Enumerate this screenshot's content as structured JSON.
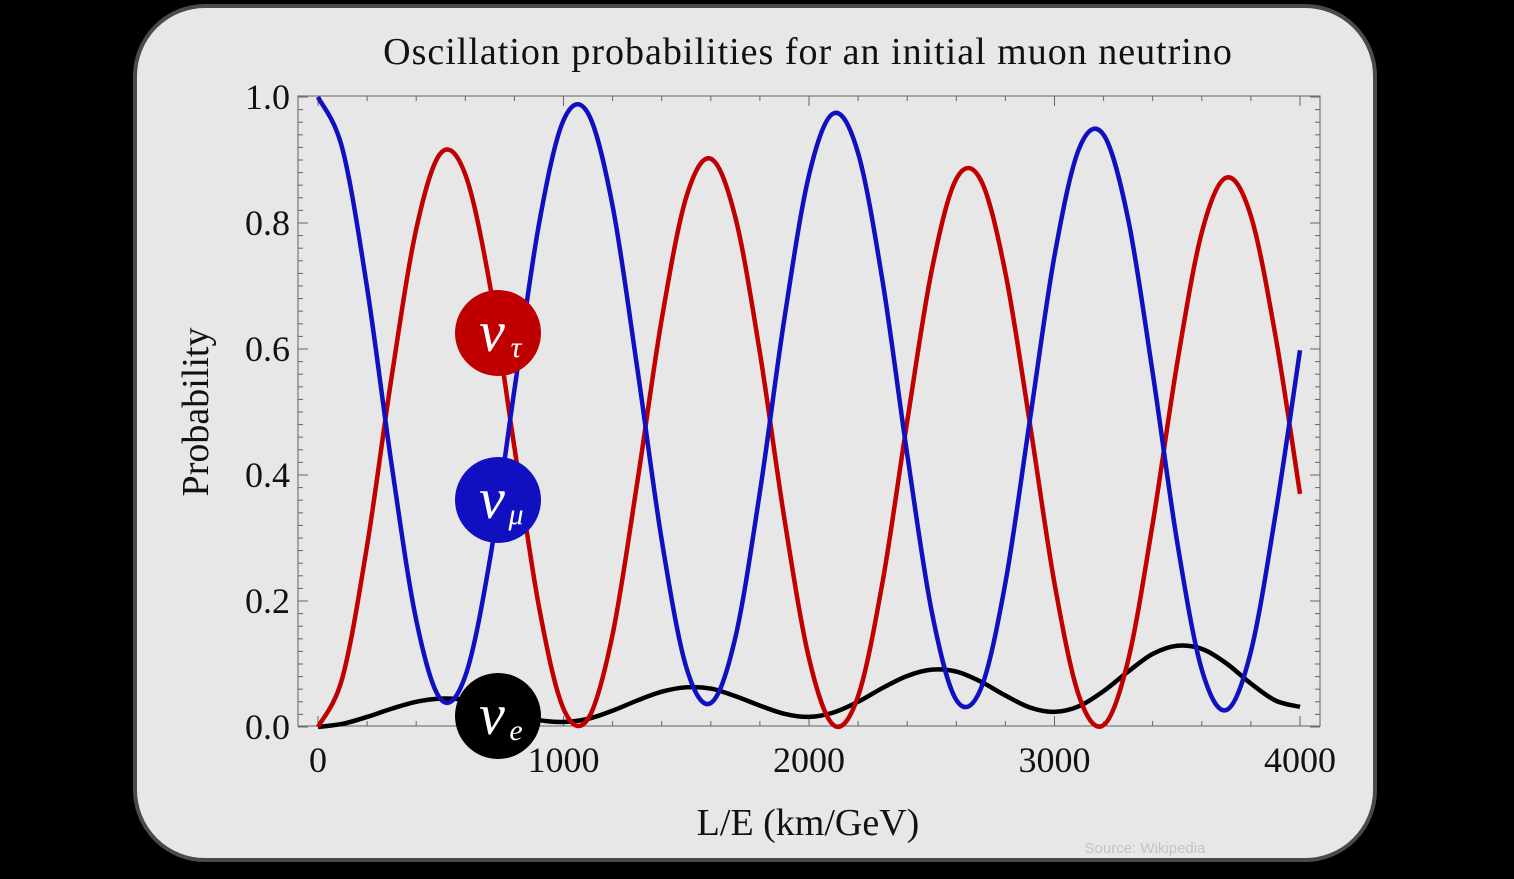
{
  "chart_data": {
    "type": "line",
    "title": "Oscillation probabilities for an initial muon neutrino",
    "xlabel": "L/E (km/GeV)",
    "ylabel": "Probability",
    "xlim": [
      0,
      4000
    ],
    "ylim": [
      0,
      1
    ],
    "x_ticks": [
      "0",
      "1000",
      "2000",
      "3000",
      "4000"
    ],
    "y_ticks": [
      "0.0",
      "0.2",
      "0.4",
      "0.6",
      "0.8",
      "1.0"
    ],
    "grid": false,
    "x": [
      0,
      100,
      200,
      300,
      400,
      500,
      600,
      700,
      800,
      900,
      1000,
      1100,
      1200,
      1300,
      1400,
      1500,
      1600,
      1700,
      1800,
      1900,
      2000,
      2100,
      2200,
      2300,
      2400,
      2500,
      2600,
      2700,
      2800,
      2900,
      3000,
      3100,
      3200,
      3300,
      3400,
      3500,
      3600,
      3700,
      3800,
      3900,
      4000
    ],
    "series": [
      {
        "name": "tau",
        "label_main": "ν",
        "label_sub": "τ",
        "color": "#c00000",
        "values": [
          0,
          0.079,
          0.288,
          0.556,
          0.79,
          0.911,
          0.877,
          0.702,
          0.444,
          0.191,
          0.029,
          0.013,
          0.147,
          0.387,
          0.647,
          0.841,
          0.902,
          0.809,
          0.594,
          0.33,
          0.109,
          0.003,
          0.049,
          0.231,
          0.485,
          0.725,
          0.87,
          0.868,
          0.721,
          0.481,
          0.228,
          0.049,
          0.003,
          0.106,
          0.323,
          0.578,
          0.785,
          0.872,
          0.811,
          0.621,
          0.37
        ]
      },
      {
        "name": "mu",
        "label_main": "ν",
        "label_sub": "μ",
        "color": "#1010c0",
        "values": [
          1,
          0.917,
          0.697,
          0.416,
          0.17,
          0.044,
          0.081,
          0.265,
          0.535,
          0.798,
          0.963,
          0.974,
          0.827,
          0.571,
          0.297,
          0.095,
          0.038,
          0.142,
          0.373,
          0.649,
          0.876,
          0.974,
          0.911,
          0.707,
          0.433,
          0.183,
          0.043,
          0.061,
          0.229,
          0.488,
          0.748,
          0.918,
          0.94,
          0.806,
          0.562,
          0.293,
          0.091,
          0.027,
          0.12,
          0.337,
          0.598
        ]
      },
      {
        "name": "e",
        "label_main": "ν",
        "label_sub": "e",
        "color": "#000000",
        "values": [
          0,
          0.005,
          0.016,
          0.029,
          0.04,
          0.045,
          0.043,
          0.033,
          0.021,
          0.011,
          0.008,
          0.013,
          0.026,
          0.042,
          0.056,
          0.063,
          0.061,
          0.049,
          0.034,
          0.021,
          0.016,
          0.023,
          0.04,
          0.062,
          0.081,
          0.091,
          0.088,
          0.072,
          0.05,
          0.031,
          0.024,
          0.033,
          0.057,
          0.088,
          0.116,
          0.129,
          0.124,
          0.101,
          0.069,
          0.042,
          0.032
        ]
      }
    ]
  },
  "source": "Source: Wikipedia",
  "colors": {
    "background": "#000000",
    "panel": "#e7e7e7"
  }
}
